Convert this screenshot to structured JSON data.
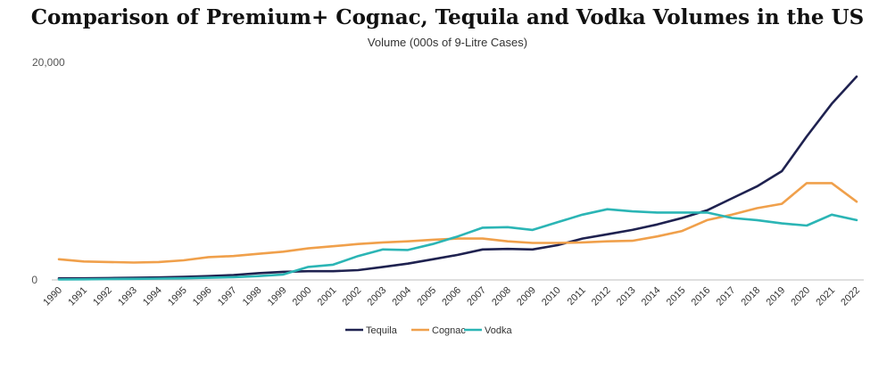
{
  "chart_data": {
    "type": "line",
    "title": "Comparison of Premium+ Cognac, Tequila and Vodka Volumes in the US",
    "subtitle": "Volume (000s of 9-Litre Cases)",
    "xlabel": "",
    "ylabel": "",
    "x": [
      "1990",
      "1991",
      "1992",
      "1993",
      "1994",
      "1995",
      "1996",
      "1997",
      "1998",
      "1999",
      "2000",
      "2001",
      "2002",
      "2003",
      "2004",
      "2005",
      "2006",
      "2007",
      "2008",
      "2009",
      "2010",
      "2011",
      "2012",
      "2013",
      "2014",
      "2015",
      "2016",
      "2017",
      "2018",
      "2019",
      "2020",
      "2021",
      "2022"
    ],
    "yticks": [
      "0",
      "20,000"
    ],
    "ylim": [
      0,
      20000
    ],
    "grid": false,
    "legend_position": "bottom-center",
    "series": [
      {
        "name": "Tequila",
        "color": "#1f2250",
        "values": [
          150,
          150,
          170,
          200,
          230,
          280,
          350,
          450,
          620,
          750,
          800,
          800,
          900,
          1200,
          1500,
          1900,
          2300,
          2800,
          2850,
          2800,
          3200,
          3800,
          4200,
          4600,
          5100,
          5700,
          6400,
          7500,
          8600,
          10000,
          13200,
          16200,
          18700
        ]
      },
      {
        "name": "Cognac",
        "color": "#f0a04b",
        "values": [
          1900,
          1700,
          1650,
          1600,
          1650,
          1800,
          2100,
          2200,
          2400,
          2600,
          2900,
          3100,
          3300,
          3450,
          3550,
          3700,
          3800,
          3800,
          3550,
          3400,
          3400,
          3450,
          3550,
          3600,
          4000,
          4500,
          5500,
          6000,
          6600,
          7000,
          8900,
          8900,
          7200
        ]
      },
      {
        "name": "Vodka",
        "color": "#2bb5b5",
        "values": [
          50,
          60,
          80,
          100,
          120,
          150,
          200,
          250,
          350,
          500,
          1200,
          1400,
          2200,
          2800,
          2750,
          3300,
          4000,
          4800,
          4850,
          4600,
          5300,
          6000,
          6500,
          6300,
          6200,
          6200,
          6200,
          5700,
          5500,
          5200,
          5000,
          6000,
          5500
        ]
      }
    ]
  }
}
